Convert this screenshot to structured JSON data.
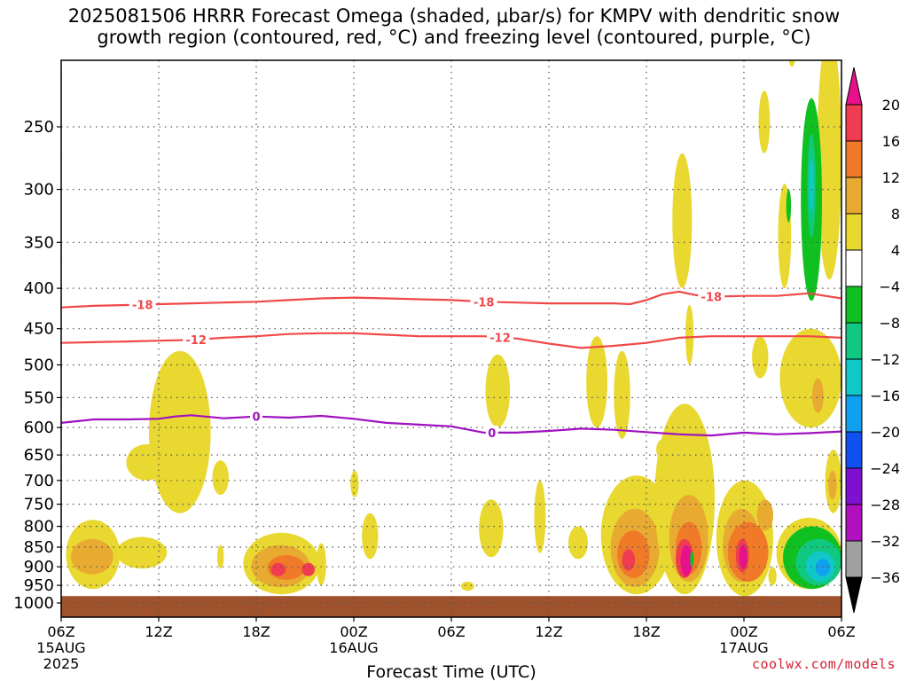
{
  "chart_data": {
    "type": "heatmap",
    "title_line1": "2025081506 HRRR Forecast Omega (shaded, μbar/s) for KMPV with dendritic snow",
    "title_line2": "growth region (contoured, red, °C) and freezing level (contoured, purple, °C)",
    "xlabel": "Forecast Time (UTC)",
    "ylabel": "",
    "y_scale": "log-pressure",
    "y_ticks": [
      250,
      300,
      350,
      400,
      450,
      500,
      550,
      600,
      650,
      700,
      750,
      800,
      850,
      900,
      950,
      1000
    ],
    "y_range_hpa": [
      200,
      1050
    ],
    "x_range_hours": [
      0,
      48
    ],
    "x_ticks": [
      {
        "hour": 0,
        "label": "06Z",
        "sub": "15AUG",
        "sub2": "2025"
      },
      {
        "hour": 6,
        "label": "12Z",
        "sub": "",
        "sub2": ""
      },
      {
        "hour": 12,
        "label": "18Z",
        "sub": "",
        "sub2": ""
      },
      {
        "hour": 18,
        "label": "00Z",
        "sub": "16AUG",
        "sub2": ""
      },
      {
        "hour": 24,
        "label": "06Z",
        "sub": "",
        "sub2": ""
      },
      {
        "hour": 30,
        "label": "12Z",
        "sub": "",
        "sub2": ""
      },
      {
        "hour": 36,
        "label": "18Z",
        "sub": "",
        "sub2": ""
      },
      {
        "hour": 42,
        "label": "00Z",
        "sub": "17AUG",
        "sub2": ""
      },
      {
        "hour": 48,
        "label": "06Z",
        "sub": "",
        "sub2": ""
      }
    ],
    "grid": true,
    "colorbar": {
      "labels": [
        "20",
        "16",
        "12",
        "8",
        "4",
        "−4",
        "−8",
        "−12",
        "−16",
        "−20",
        "−24",
        "−28",
        "−32",
        "−36"
      ],
      "colors": [
        "#f03c50",
        "#f07a28",
        "#e8aa30",
        "#e8d830",
        "#ffffff",
        "#10c020",
        "#10c880",
        "#10c8c8",
        "#10a0f0",
        "#1050f0",
        "#8010d0",
        "#b010c0",
        "#a0a0a0"
      ],
      "top_arrow_color": "#e8108c",
      "bottom_arrow_color": "#000000"
    },
    "contours": [
      {
        "label": "-18",
        "color": "#f04848",
        "points": [
          [
            0,
            423
          ],
          [
            2,
            421
          ],
          [
            4,
            420
          ],
          [
            6,
            419
          ],
          [
            8,
            418
          ],
          [
            10,
            417
          ],
          [
            12,
            416
          ],
          [
            14,
            414
          ],
          [
            16,
            412
          ],
          [
            18,
            411
          ],
          [
            20,
            412
          ],
          [
            22,
            413
          ],
          [
            24,
            414
          ],
          [
            26,
            416
          ],
          [
            28,
            417
          ],
          [
            30,
            418
          ],
          [
            32,
            418
          ],
          [
            34,
            418
          ],
          [
            35,
            419
          ],
          [
            36,
            414
          ],
          [
            37,
            407
          ],
          [
            38,
            404
          ],
          [
            39,
            408
          ],
          [
            40,
            410
          ],
          [
            42,
            409
          ],
          [
            44,
            409
          ],
          [
            46,
            406
          ],
          [
            48,
            412
          ]
        ],
        "label_hours": [
          5,
          26,
          40
        ]
      },
      {
        "label": "-12",
        "color": "#f04848",
        "points": [
          [
            0,
            469
          ],
          [
            2,
            468
          ],
          [
            4,
            467
          ],
          [
            6,
            466
          ],
          [
            8,
            465
          ],
          [
            10,
            462
          ],
          [
            12,
            460
          ],
          [
            14,
            457
          ],
          [
            16,
            456
          ],
          [
            18,
            456
          ],
          [
            20,
            458
          ],
          [
            22,
            460
          ],
          [
            24,
            460
          ],
          [
            26,
            460
          ],
          [
            28,
            463
          ],
          [
            30,
            470
          ],
          [
            32,
            476
          ],
          [
            34,
            473
          ],
          [
            36,
            469
          ],
          [
            38,
            462
          ],
          [
            40,
            460
          ],
          [
            42,
            460
          ],
          [
            44,
            460
          ],
          [
            46,
            460
          ],
          [
            48,
            462
          ]
        ],
        "label_hours": [
          8.3,
          27
        ]
      },
      {
        "label": "0",
        "color": "#a010c0",
        "points": [
          [
            0,
            592
          ],
          [
            2,
            586
          ],
          [
            4,
            586
          ],
          [
            6,
            585
          ],
          [
            7,
            581
          ],
          [
            8,
            579
          ],
          [
            10,
            584
          ],
          [
            12,
            581
          ],
          [
            14,
            583
          ],
          [
            16,
            580
          ],
          [
            18,
            585
          ],
          [
            20,
            592
          ],
          [
            22,
            595
          ],
          [
            24,
            598
          ],
          [
            26,
            609
          ],
          [
            28,
            609
          ],
          [
            30,
            606
          ],
          [
            32,
            602
          ],
          [
            34,
            604
          ],
          [
            36,
            608
          ],
          [
            38,
            612
          ],
          [
            40,
            614
          ],
          [
            42,
            609
          ],
          [
            44,
            612
          ],
          [
            46,
            610
          ],
          [
            48,
            607
          ]
        ],
        "label_hours": [
          12,
          26.5
        ]
      }
    ],
    "shaded_regions": [
      {
        "v": 6,
        "t": [
          0.3,
          3.6
        ],
        "p": [
          785,
          960
        ]
      },
      {
        "v": 10,
        "t": [
          0.6,
          3.2
        ],
        "p": [
          830,
          920
        ]
      },
      {
        "v": 6,
        "t": [
          3.4,
          6.5
        ],
        "p": [
          825,
          905
        ]
      },
      {
        "v": 6,
        "t": [
          4.0,
          6.5
        ],
        "p": [
          630,
          700
        ]
      },
      {
        "v": 6,
        "t": [
          5.4,
          9.2
        ],
        "p": [
          480,
          770
        ]
      },
      {
        "v": 6,
        "t": [
          9.3,
          10.3
        ],
        "p": [
          660,
          730
        ]
      },
      {
        "v": 6,
        "t": [
          9.6,
          10.0
        ],
        "p": [
          845,
          905
        ]
      },
      {
        "v": 6,
        "t": [
          11.2,
          15.9
        ],
        "p": [
          815,
          975
        ]
      },
      {
        "v": 10,
        "t": [
          11.7,
          15.3
        ],
        "p": [
          845,
          955
        ]
      },
      {
        "v": 14,
        "t": [
          12.7,
          15.0
        ],
        "p": [
          870,
          935
        ]
      },
      {
        "v": 18,
        "t": [
          12.9,
          13.8
        ],
        "p": [
          890,
          925
        ]
      },
      {
        "v": 18,
        "t": [
          14.8,
          15.6
        ],
        "p": [
          890,
          925
        ]
      },
      {
        "v": 6,
        "t": [
          15.7,
          16.3
        ],
        "p": [
          840,
          950
        ]
      },
      {
        "v": 6,
        "t": [
          17.8,
          18.3
        ],
        "p": [
          680,
          735
        ]
      },
      {
        "v": 6,
        "t": [
          18.5,
          19.5
        ],
        "p": [
          770,
          880
        ]
      },
      {
        "v": 6,
        "t": [
          24.6,
          25.4
        ],
        "p": [
          940,
          965
        ]
      },
      {
        "v": 6,
        "t": [
          25.7,
          27.2
        ],
        "p": [
          740,
          875
        ]
      },
      {
        "v": 6,
        "t": [
          26.1,
          27.6
        ],
        "p": [
          485,
          600
        ]
      },
      {
        "v": 6,
        "t": [
          29.1,
          29.8
        ],
        "p": [
          700,
          865
        ]
      },
      {
        "v": 6,
        "t": [
          31.2,
          32.4
        ],
        "p": [
          800,
          880
        ]
      },
      {
        "v": 6,
        "t": [
          32.3,
          33.6
        ],
        "p": [
          460,
          600
        ]
      },
      {
        "v": 6,
        "t": [
          34.0,
          35.0
        ],
        "p": [
          480,
          620
        ]
      },
      {
        "v": 6,
        "t": [
          33.2,
          37.6
        ],
        "p": [
          690,
          975
        ]
      },
      {
        "v": 10,
        "t": [
          33.8,
          36.8
        ],
        "p": [
          760,
          955
        ]
      },
      {
        "v": 14,
        "t": [
          34.2,
          36.2
        ],
        "p": [
          810,
          930
        ]
      },
      {
        "v": 18,
        "t": [
          34.5,
          35.3
        ],
        "p": [
          855,
          910
        ]
      },
      {
        "v": 6,
        "t": [
          36.5,
          40.2
        ],
        "p": [
          560,
          975
        ]
      },
      {
        "v": 10,
        "t": [
          37.4,
          39.8
        ],
        "p": [
          730,
          940
        ]
      },
      {
        "v": 14,
        "t": [
          37.8,
          39.4
        ],
        "p": [
          790,
          920
        ]
      },
      {
        "v": 18,
        "t": [
          37.8,
          38.9
        ],
        "p": [
          830,
          930
        ]
      },
      {
        "v": 22,
        "t": [
          38.1,
          38.8
        ],
        "p": [
          845,
          925
        ]
      },
      {
        "v": 6,
        "t": [
          36.6,
          37.5
        ],
        "p": [
          620,
          660
        ]
      },
      {
        "v": 6,
        "t": [
          38.4,
          38.9
        ],
        "p": [
          420,
          500
        ]
      },
      {
        "v": 6,
        "t": [
          37.6,
          38.8
        ],
        "p": [
          270,
          400
        ]
      },
      {
        "v": -6,
        "t": [
          38.7,
          38.9
        ],
        "p": [
          860,
          900
        ]
      },
      {
        "v": 6,
        "t": [
          40.3,
          43.8
        ],
        "p": [
          700,
          980
        ]
      },
      {
        "v": 10,
        "t": [
          40.7,
          43.0
        ],
        "p": [
          760,
          940
        ]
      },
      {
        "v": 14,
        "t": [
          41.0,
          43.5
        ],
        "p": [
          790,
          940
        ]
      },
      {
        "v": 18,
        "t": [
          41.5,
          42.3
        ],
        "p": [
          830,
          915
        ]
      },
      {
        "v": 22,
        "t": [
          41.7,
          42.2
        ],
        "p": [
          845,
          905
        ]
      },
      {
        "v": 10,
        "t": [
          42.8,
          43.8
        ],
        "p": [
          740,
          810
        ]
      },
      {
        "v": 6,
        "t": [
          42.5,
          43.5
        ],
        "p": [
          460,
          520
        ]
      },
      {
        "v": 6,
        "t": [
          43.5,
          44.0
        ],
        "p": [
          900,
          950
        ]
      },
      {
        "v": 6,
        "t": [
          42.2,
          44.2
        ],
        "p": [
          980,
          1000
        ]
      },
      {
        "v": 6,
        "t": [
          42.9,
          43.6
        ],
        "p": [
          225,
          270
        ]
      },
      {
        "v": 6,
        "t": [
          44.1,
          44.9
        ],
        "p": [
          295,
          400
        ]
      },
      {
        "v": 6,
        "t": [
          44.2,
          48.0
        ],
        "p": [
          450,
          600
        ]
      },
      {
        "v": 10,
        "t": [
          46.2,
          46.9
        ],
        "p": [
          520,
          575
        ]
      },
      {
        "v": 6,
        "t": [
          44.0,
          48.0
        ],
        "p": [
          780,
          960
        ]
      },
      {
        "v": -6,
        "t": [
          44.4,
          48.0
        ],
        "p": [
          800,
          960
        ]
      },
      {
        "v": -10,
        "t": [
          45.2,
          48.0
        ],
        "p": [
          830,
          950
        ]
      },
      {
        "v": -14,
        "t": [
          45.8,
          47.6
        ],
        "p": [
          860,
          940
        ]
      },
      {
        "v": -18,
        "t": [
          46.4,
          47.3
        ],
        "p": [
          880,
          925
        ]
      },
      {
        "v": 6,
        "t": [
          46.5,
          48.0
        ],
        "p": [
          190,
          390
        ]
      },
      {
        "v": 6,
        "t": [
          47.0,
          48.0
        ],
        "p": [
          640,
          770
        ]
      },
      {
        "v": 10,
        "t": [
          47.2,
          47.7
        ],
        "p": [
          680,
          740
        ]
      },
      {
        "v": -6,
        "t": [
          45.5,
          46.8
        ],
        "p": [
          230,
          415
        ]
      },
      {
        "v": -10,
        "t": [
          45.9,
          46.4
        ],
        "p": [
          255,
          345
        ]
      },
      {
        "v": -14,
        "t": [
          46.0,
          46.3
        ],
        "p": [
          275,
          320
        ]
      },
      {
        "v": -6,
        "t": [
          44.6,
          44.9
        ],
        "p": [
          300,
          330
        ]
      },
      {
        "v": 6,
        "t": [
          44.7,
          45.2
        ],
        "p": [
          190,
          210
        ]
      }
    ]
  },
  "footer": {
    "credit": "coolwx.com/models"
  }
}
